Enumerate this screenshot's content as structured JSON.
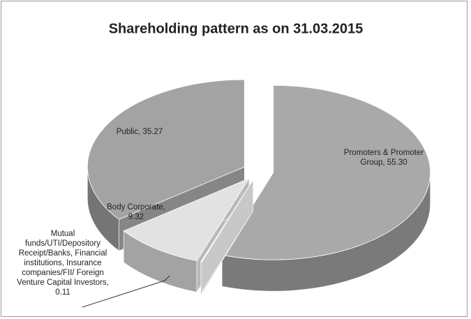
{
  "chart_data": {
    "type": "pie",
    "title": "Shareholding pattern as on 31.03.2015",
    "labels": [
      "Promoters & Promoter Group, 55.30",
      "Mutual funds/UTI/Depository Receipt/Banks, Financial institutions, Insurance companies/FII/ Foreign Venture Capital Investors, 0.11",
      "Body Corporate, 9.32",
      "Public, 35.27"
    ],
    "values": [
      55.3,
      0.11,
      9.32,
      35.27
    ],
    "colors": [
      "#a9a9a9",
      "#f4f4f4",
      "#e2e2e2",
      "#a3a3a3"
    ]
  }
}
